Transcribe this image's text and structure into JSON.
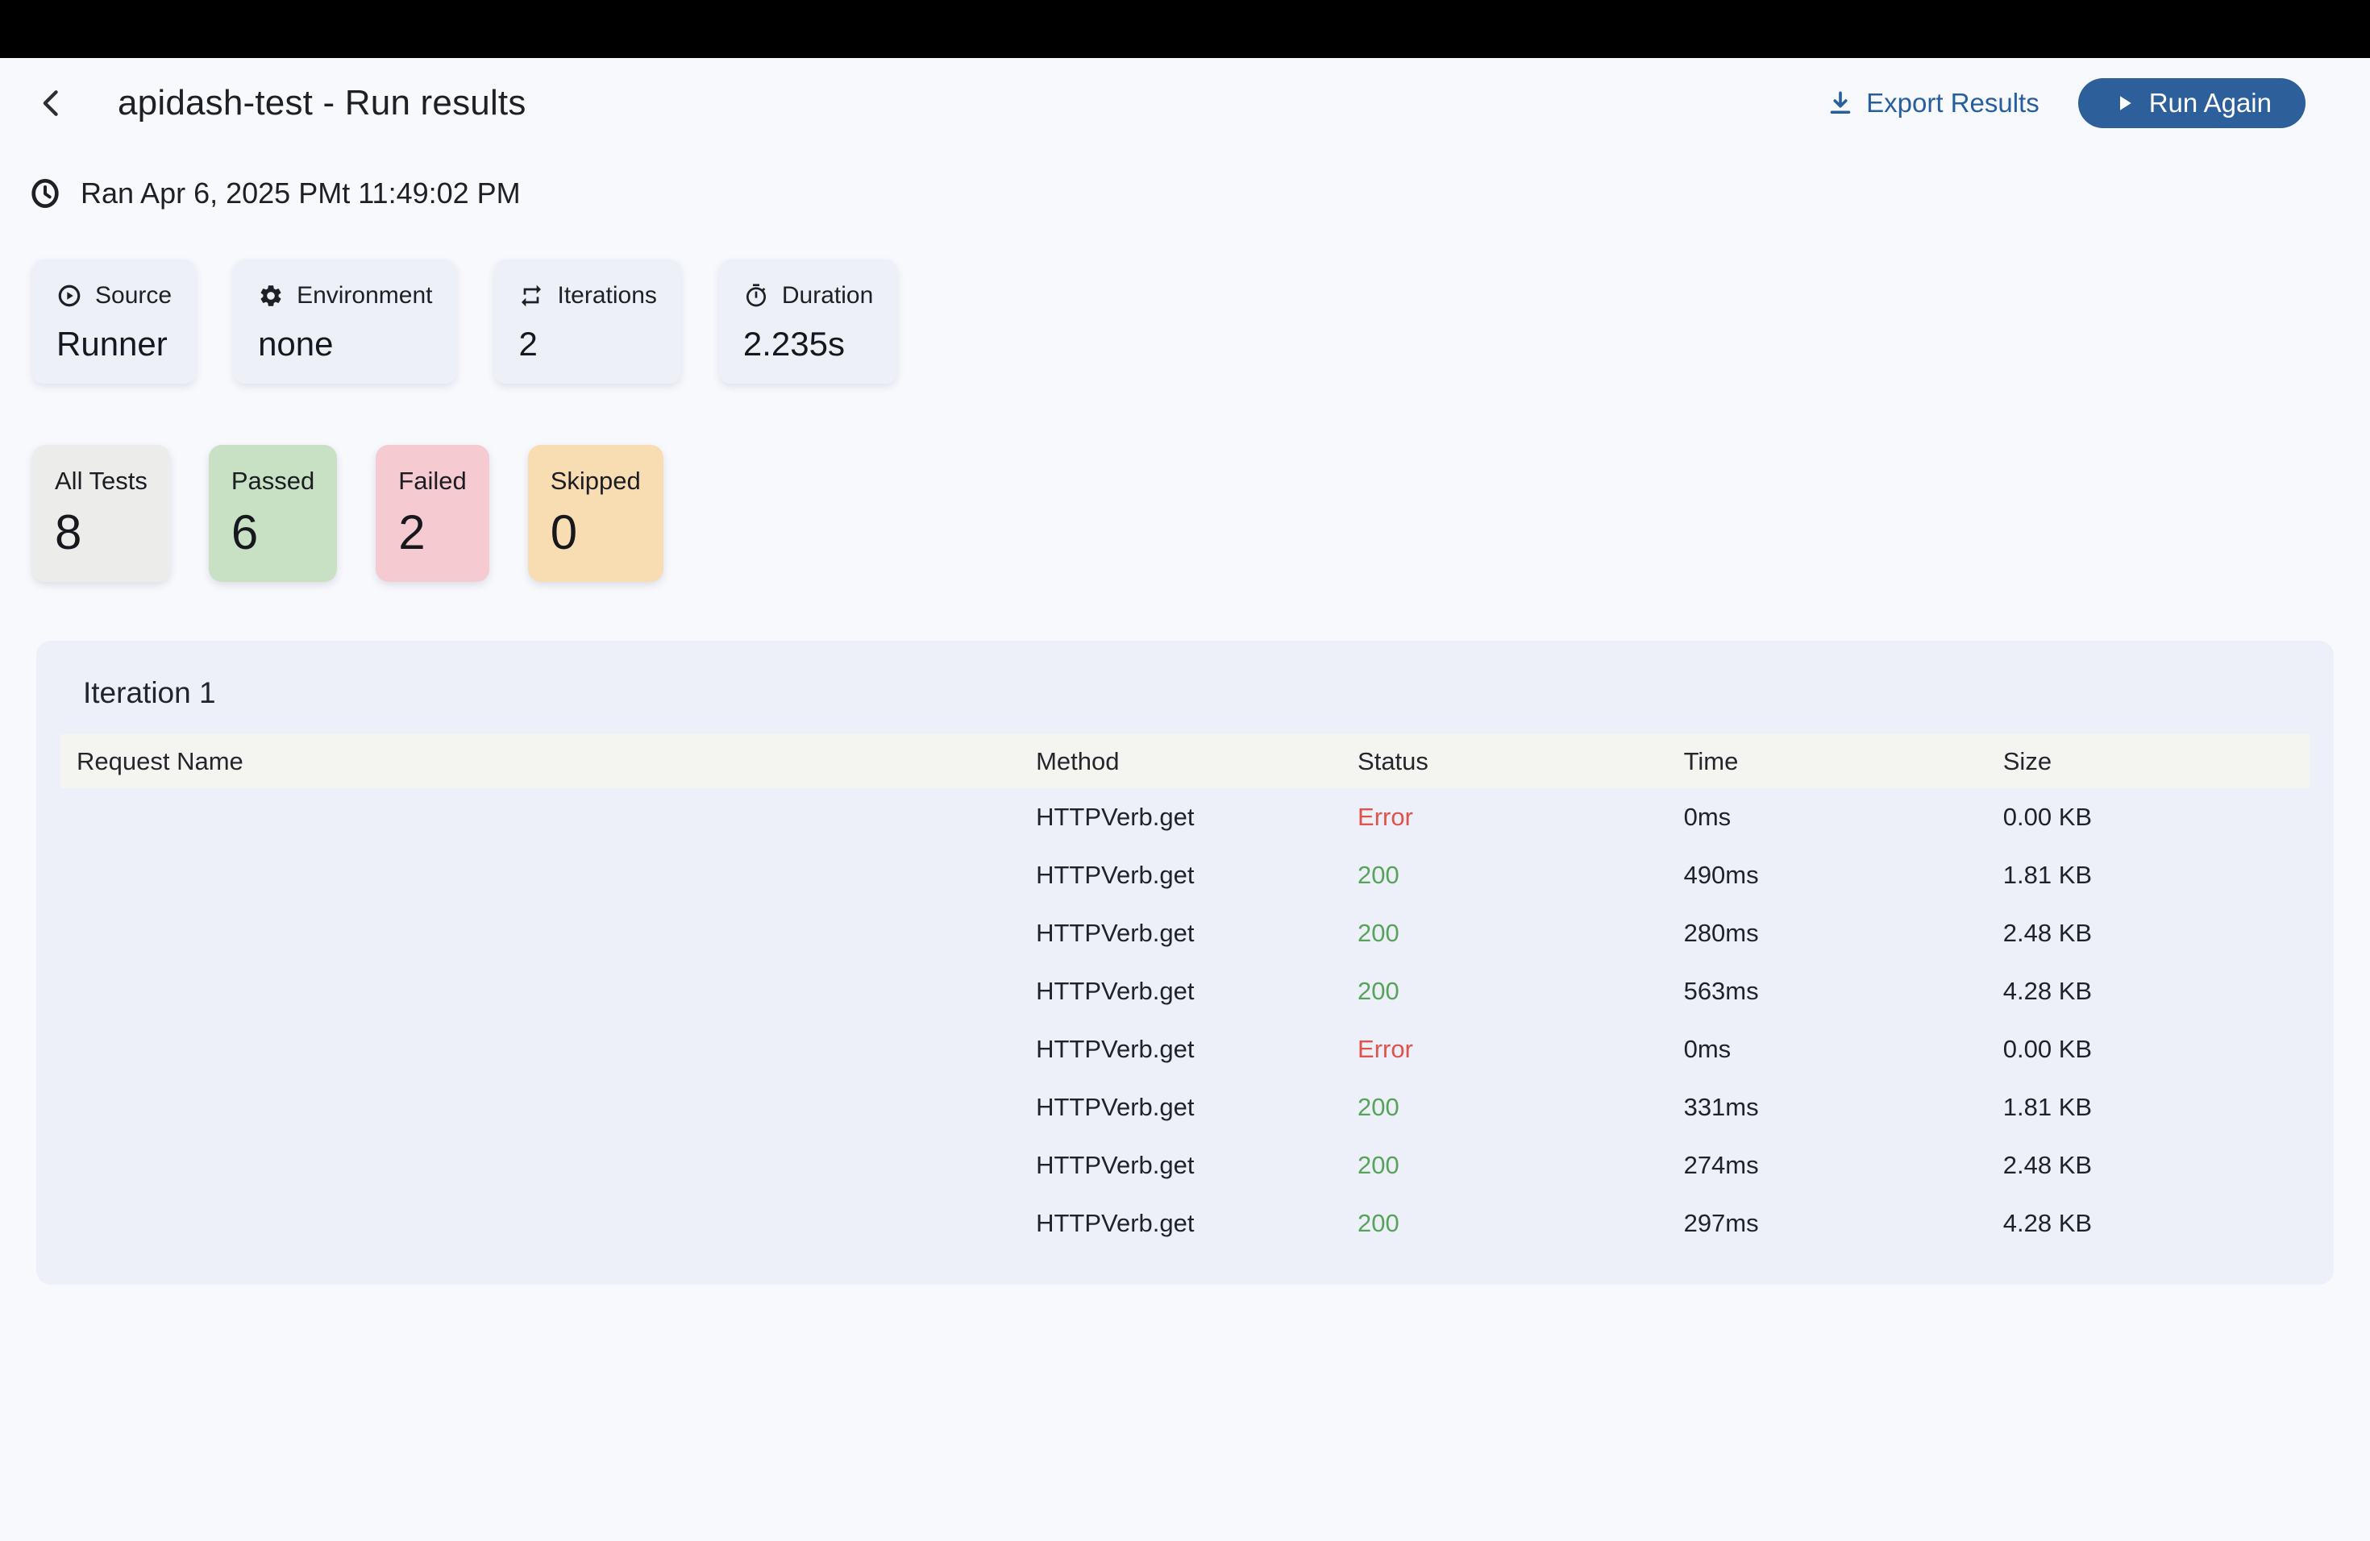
{
  "header": {
    "title": "apidash-test - Run results",
    "export_label": "Export Results",
    "run_again_label": "Run Again",
    "back_icon": "chevron-left-icon",
    "export_icon": "download-icon",
    "run_icon": "play-icon"
  },
  "run_meta": {
    "timestamp": "Ran Apr 6, 2025 PMt 11:49:02 PM",
    "icon": "clock-icon"
  },
  "info_cards": [
    {
      "icon": "play-circle-icon",
      "label": "Source",
      "value": "Runner"
    },
    {
      "icon": "gear-icon",
      "label": "Environment",
      "value": "none"
    },
    {
      "icon": "repeat-icon",
      "label": "Iterations",
      "value": "2"
    },
    {
      "icon": "stopwatch-icon",
      "label": "Duration",
      "value": "2.235s"
    }
  ],
  "stat_cards": [
    {
      "label": "All Tests",
      "value": "8",
      "bg": "#ecedeb"
    },
    {
      "label": "Passed",
      "value": "6",
      "bg": "#c8e1c4"
    },
    {
      "label": "Failed",
      "value": "2",
      "bg": "#f5cad0"
    },
    {
      "label": "Skipped",
      "value": "0",
      "bg": "#f8dcb2"
    }
  ],
  "iteration": {
    "title": "Iteration 1",
    "columns": [
      "Request Name",
      "Method",
      "Status",
      "Time",
      "Size"
    ],
    "rows": [
      {
        "request_name": "",
        "method": "HTTPVerb.get",
        "status": "Error",
        "time": "0ms",
        "size": "0.00 KB"
      },
      {
        "request_name": "",
        "method": "HTTPVerb.get",
        "status": "200",
        "time": "490ms",
        "size": "1.81 KB"
      },
      {
        "request_name": "",
        "method": "HTTPVerb.get",
        "status": "200",
        "time": "280ms",
        "size": "2.48 KB"
      },
      {
        "request_name": "",
        "method": "HTTPVerb.get",
        "status": "200",
        "time": "563ms",
        "size": "4.28 KB"
      },
      {
        "request_name": "",
        "method": "HTTPVerb.get",
        "status": "Error",
        "time": "0ms",
        "size": "0.00 KB"
      },
      {
        "request_name": "",
        "method": "HTTPVerb.get",
        "status": "200",
        "time": "331ms",
        "size": "1.81 KB"
      },
      {
        "request_name": "",
        "method": "HTTPVerb.get",
        "status": "200",
        "time": "274ms",
        "size": "2.48 KB"
      },
      {
        "request_name": "",
        "method": "HTTPVerb.get",
        "status": "200",
        "time": "297ms",
        "size": "4.28 KB"
      }
    ]
  },
  "colors": {
    "accent_blue": "#2d5f9b",
    "link_blue": "#265e9e",
    "error_red": "#e0534a",
    "success_green": "#58a35b",
    "page_bg": "#f8f9fd",
    "panel_bg": "#edf0f8",
    "table_header_bg": "#f4f5f1",
    "info_card_bg": "#eef0f7",
    "top_bar_bg": "#000000"
  }
}
